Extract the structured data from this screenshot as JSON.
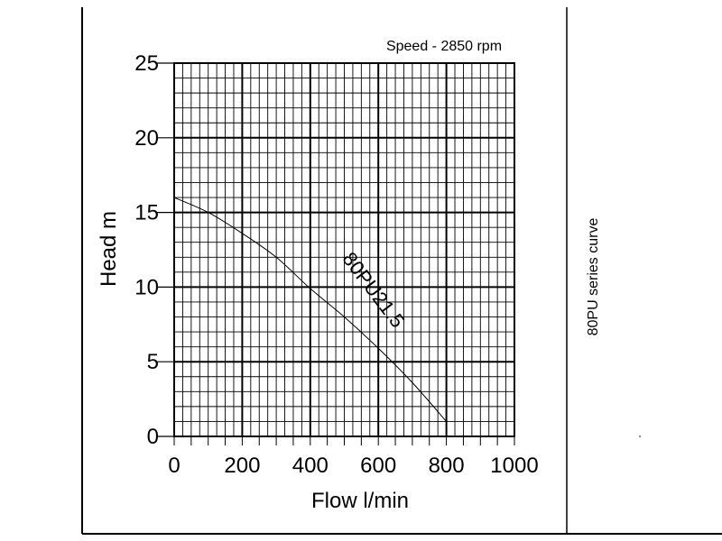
{
  "chart_data": {
    "type": "line",
    "title": "Speed - 2850 rpm",
    "side_note": "80PU series curve",
    "xlabel": "Flow l/min",
    "ylabel": "Head m",
    "xlim": [
      0,
      1000
    ],
    "ylim": [
      0,
      25
    ],
    "x_ticks": [
      "0",
      "200",
      "400",
      "600",
      "800",
      "1000"
    ],
    "y_ticks": [
      "0",
      "5",
      "10",
      "15",
      "20",
      "25"
    ],
    "grid": true,
    "series": [
      {
        "name": "80PU21.5",
        "color": "#000000",
        "x": [
          0,
          100,
          200,
          300,
          400,
          500,
          600,
          700,
          800
        ],
        "y": [
          16,
          15,
          13.6,
          12,
          9.9,
          8,
          5.9,
          3.6,
          1
        ]
      }
    ]
  }
}
